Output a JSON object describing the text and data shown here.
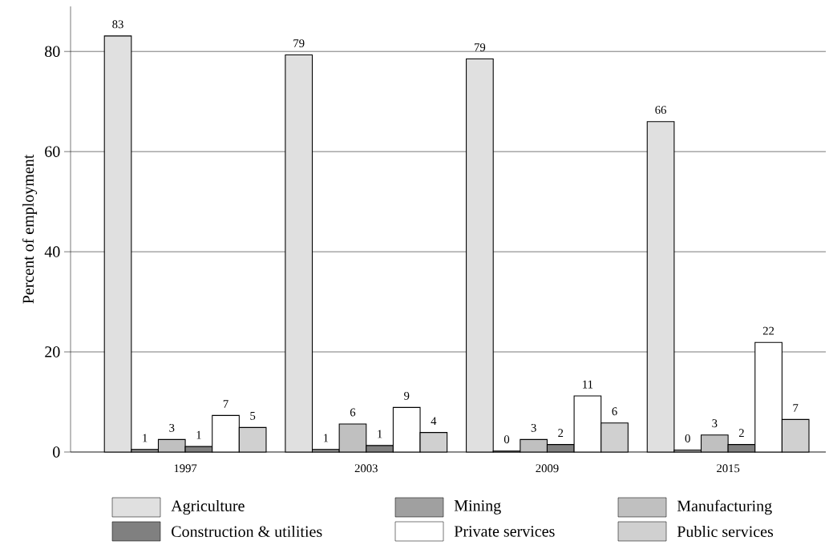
{
  "chart_data": {
    "type": "bar",
    "ylabel": "Percent of employment",
    "categories": [
      "1997",
      "2003",
      "2009",
      "2015"
    ],
    "series": [
      {
        "name": "Agriculture",
        "color": "#e0e0e0",
        "values": [
          83.1,
          79.3,
          78.5,
          66.0
        ],
        "value_labels": [
          "83",
          "79",
          "79",
          "66"
        ]
      },
      {
        "name": "Mining",
        "color": "#a0a0a0",
        "values": [
          0.5,
          0.5,
          0.2,
          0.4
        ],
        "value_labels": [
          "1",
          "1",
          "0",
          "0"
        ]
      },
      {
        "name": "Manufacturing",
        "color": "#c0c0c0",
        "values": [
          2.5,
          5.6,
          2.5,
          3.4
        ],
        "value_labels": [
          "3",
          "6",
          "3",
          "3"
        ]
      },
      {
        "name": "Construction & utilities",
        "color": "#808080",
        "values": [
          1.1,
          1.3,
          1.5,
          1.5
        ],
        "value_labels": [
          "1",
          "1",
          "2",
          "2"
        ]
      },
      {
        "name": "Private services",
        "color": "#ffffff",
        "values": [
          7.3,
          8.9,
          11.2,
          21.9
        ],
        "value_labels": [
          "7",
          "9",
          "11",
          "22"
        ]
      },
      {
        "name": "Public services",
        "color": "#d0d0d0",
        "values": [
          4.9,
          3.9,
          5.8,
          6.5
        ],
        "value_labels": [
          "5",
          "4",
          "6",
          "7"
        ]
      }
    ],
    "ylim": [
      0,
      89
    ],
    "yticks": [
      0,
      20,
      40,
      60,
      80
    ],
    "grid": "y",
    "legend": "bottom"
  }
}
